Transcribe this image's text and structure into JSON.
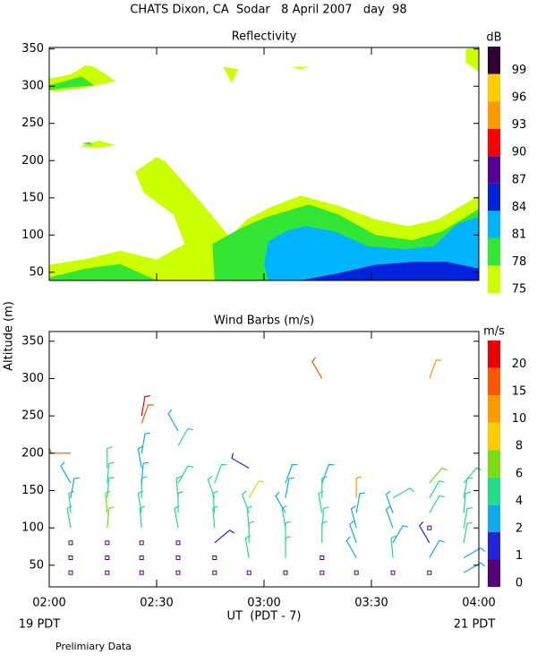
{
  "title": "CHATS Dixon, CA  Sodar   8 April 2007   day  98",
  "y_label": "Altitude (m)",
  "x_label": "UT  (PDT - 7)",
  "x_left_note": "19 PDT",
  "x_right_note": "21 PDT",
  "footnote": "Prelimiary Data",
  "chart_data": [
    {
      "type": "contour",
      "title": "Reflectivity",
      "colorbar_label": "dB",
      "levels": [
        75,
        78,
        81,
        84,
        87,
        90,
        93,
        96,
        99
      ],
      "colors": [
        "#ccff00",
        "#33e633",
        "#00b4ff",
        "#0022dd",
        "#550099",
        "#ff0000",
        "#ff9900",
        "#ffcc00",
        "#330033"
      ],
      "xlim": [
        2,
        4
      ],
      "ylim": [
        39,
        352
      ],
      "xticks": [
        2,
        2.5,
        3,
        3.5,
        4
      ],
      "yticks": [
        50,
        100,
        150,
        200,
        250,
        300,
        350
      ],
      "regions": [
        {
          "level": 75,
          "x": [
            2,
            2.19,
            2.33,
            2.5,
            2.63,
            2.58,
            2.44,
            2.4,
            2.5,
            2.54,
            2.65,
            2.75,
            2.84,
            2.92,
            3.02,
            3.17,
            3.35,
            3.52,
            3.67,
            3.81,
            4,
            4,
            2
          ],
          "y": [
            60,
            69,
            79,
            67,
            88,
            127,
            157,
            185,
            205,
            199,
            163,
            129,
            97,
            121,
            136,
            153,
            139,
            121,
            112,
            121,
            153,
            39,
            39
          ]
        },
        {
          "level": 75,
          "x": [
            2,
            2.1,
            2.17,
            2.21,
            2.31,
            2.17,
            2.02,
            2
          ],
          "y": [
            310,
            316,
            328,
            326,
            307,
            298,
            293,
            295
          ]
        },
        {
          "level": 75,
          "x": [
            2.14,
            2.23,
            2.31,
            2.23
          ],
          "y": [
            219,
            227,
            221,
            217
          ]
        },
        {
          "level": 75,
          "x": [
            2.81,
            2.88,
            2.85
          ],
          "y": [
            326,
            323,
            304
          ]
        },
        {
          "level": 75,
          "x": [
            3.13,
            3.21,
            3.17
          ],
          "y": [
            326,
            326,
            322
          ]
        },
        {
          "level": 75,
          "x": [
            3.94,
            3.98,
            4,
            4,
            3.94
          ],
          "y": [
            350,
            352,
            352,
            319,
            332
          ]
        },
        {
          "level": 78,
          "x": [
            2,
            2,
            2.17,
            2.33,
            2.5
          ],
          "y": [
            39,
            43,
            55,
            61,
            39
          ]
        },
        {
          "level": 78,
          "x": [
            2.77,
            2.76,
            2.89,
            3.0,
            3.15,
            3.21,
            3.35,
            3.52,
            3.69,
            3.83,
            4,
            4
          ],
          "y": [
            39,
            88,
            109,
            123,
            136,
            141,
            127,
            100,
            93,
            105,
            135,
            39
          ]
        },
        {
          "level": 78,
          "x": [
            2,
            2.15,
            2.21,
            2.08,
            2
          ],
          "y": [
            301,
            313,
            301,
            298,
            295
          ]
        },
        {
          "level": 78,
          "x": [
            2.15,
            2.19,
            2.2
          ],
          "y": [
            223,
            225,
            221
          ]
        },
        {
          "level": 81,
          "x": [
            3.02,
            3.0,
            3.02,
            3.1,
            3.19,
            3.33,
            3.48,
            3.65,
            3.79,
            3.9,
            3.98,
            4,
            4
          ],
          "y": [
            39,
            61,
            91,
            105,
            112,
            105,
            85,
            81,
            85,
            115,
            123,
            123,
            39
          ]
        },
        {
          "level": 84,
          "x": [
            3.17,
            3.35,
            3.52,
            3.69,
            3.85,
            4,
            4
          ],
          "y": [
            39,
            49,
            60,
            64,
            64,
            55,
            39
          ]
        }
      ]
    },
    {
      "type": "barbs",
      "title": "Wind Barbs (m/s)",
      "colorbar_label": "m/s",
      "levels": [
        0,
        1,
        2,
        4,
        6,
        8,
        10,
        15,
        20
      ],
      "colors": [
        "#550077",
        "#2222dd",
        "#11aaee",
        "#22dd88",
        "#77dd11",
        "#ffcc00",
        "#ff9900",
        "#ff5500",
        "#ee0000"
      ],
      "xlim": [
        2,
        4
      ],
      "ylim": [
        21,
        363
      ],
      "xticks": [
        {
          "value": 2,
          "label": "02:00"
        },
        {
          "value": 2.5,
          "label": "02:30"
        },
        {
          "value": 3,
          "label": "03:00"
        },
        {
          "value": 3.5,
          "label": "03:30"
        },
        {
          "value": 4,
          "label": "04:00"
        }
      ],
      "yticks": [
        50,
        100,
        150,
        200,
        250,
        300,
        350
      ],
      "barbs": [
        [
          2.1,
          40,
          0,
          0
        ],
        [
          2.1,
          60,
          0,
          0
        ],
        [
          2.1,
          80,
          0,
          0
        ],
        [
          2.1,
          100,
          4.5,
          350
        ],
        [
          2.1,
          120,
          4.5,
          355
        ],
        [
          2.1,
          140,
          3,
          10
        ],
        [
          2.1,
          160,
          3,
          330
        ],
        [
          2.1,
          200,
          16,
          270
        ],
        [
          2.27,
          40,
          0,
          0
        ],
        [
          2.27,
          60,
          0,
          0
        ],
        [
          2.27,
          80,
          0,
          0
        ],
        [
          2.27,
          100,
          6,
          5
        ],
        [
          2.27,
          120,
          6.5,
          355
        ],
        [
          2.27,
          140,
          5,
          5
        ],
        [
          2.27,
          160,
          5,
          5
        ],
        [
          2.27,
          180,
          5,
          0
        ],
        [
          2.43,
          40,
          0,
          0
        ],
        [
          2.43,
          60,
          0,
          0
        ],
        [
          2.43,
          80,
          0,
          0
        ],
        [
          2.43,
          100,
          5,
          355
        ],
        [
          2.43,
          120,
          4,
          350
        ],
        [
          2.43,
          140,
          4,
          0
        ],
        [
          2.43,
          160,
          3,
          5
        ],
        [
          2.43,
          180,
          3,
          350
        ],
        [
          2.43,
          200,
          3,
          10
        ],
        [
          2.43,
          240,
          17,
          20
        ],
        [
          2.43,
          250,
          20,
          10
        ],
        [
          2.6,
          40,
          0,
          0
        ],
        [
          2.6,
          60,
          0,
          0
        ],
        [
          2.6,
          80,
          0,
          0
        ],
        [
          2.6,
          100,
          5,
          350
        ],
        [
          2.6,
          120,
          5,
          0
        ],
        [
          2.6,
          140,
          4.5,
          355
        ],
        [
          2.6,
          160,
          5,
          30
        ],
        [
          2.6,
          210,
          5,
          30
        ],
        [
          2.6,
          230,
          2.5,
          330
        ],
        [
          2.77,
          40,
          0,
          0
        ],
        [
          2.77,
          60,
          0,
          0
        ],
        [
          2.77,
          80,
          1.5,
          50
        ],
        [
          2.77,
          100,
          5,
          355
        ],
        [
          2.77,
          120,
          4.5,
          355
        ],
        [
          2.77,
          140,
          4,
          340
        ],
        [
          2.77,
          160,
          4.5,
          20
        ],
        [
          2.93,
          40,
          0,
          0
        ],
        [
          2.93,
          60,
          5,
          350
        ],
        [
          2.93,
          80,
          5,
          0
        ],
        [
          2.93,
          100,
          5,
          355
        ],
        [
          2.93,
          120,
          4,
          340
        ],
        [
          2.93,
          140,
          8,
          30
        ],
        [
          2.93,
          180,
          1.5,
          300
        ],
        [
          3.1,
          40,
          0,
          0
        ],
        [
          3.1,
          60,
          5,
          0
        ],
        [
          3.1,
          80,
          5,
          0
        ],
        [
          3.1,
          100,
          4,
          350
        ],
        [
          3.1,
          120,
          3,
          330
        ],
        [
          3.1,
          140,
          3,
          10
        ],
        [
          3.1,
          160,
          3,
          20
        ],
        [
          3.27,
          40,
          0,
          0
        ],
        [
          3.27,
          60,
          0,
          0
        ],
        [
          3.27,
          80,
          5,
          0
        ],
        [
          3.27,
          100,
          5,
          5
        ],
        [
          3.27,
          120,
          4,
          350
        ],
        [
          3.27,
          140,
          4,
          0
        ],
        [
          3.27,
          160,
          3,
          20
        ],
        [
          3.27,
          300,
          15,
          330
        ],
        [
          3.43,
          40,
          0,
          0
        ],
        [
          3.43,
          60,
          2.5,
          330
        ],
        [
          3.43,
          80,
          3,
          340
        ],
        [
          3.43,
          100,
          3,
          345
        ],
        [
          3.43,
          120,
          3,
          10
        ],
        [
          3.43,
          140,
          10,
          0
        ],
        [
          3.6,
          40,
          0,
          0
        ],
        [
          3.6,
          60,
          5,
          355
        ],
        [
          3.6,
          80,
          3,
          30
        ],
        [
          3.6,
          100,
          3,
          340
        ],
        [
          3.6,
          120,
          3,
          340
        ],
        [
          3.6,
          140,
          5,
          60
        ],
        [
          3.77,
          40,
          0,
          0
        ],
        [
          3.77,
          60,
          3,
          30
        ],
        [
          3.77,
          80,
          1.5,
          330
        ],
        [
          3.77,
          100,
          0,
          0
        ],
        [
          3.77,
          120,
          5,
          30
        ],
        [
          3.77,
          140,
          5,
          30
        ],
        [
          3.77,
          160,
          6,
          40
        ],
        [
          3.77,
          300,
          13,
          20
        ],
        [
          3.93,
          40,
          3,
          60
        ],
        [
          3.93,
          60,
          3,
          60
        ],
        [
          3.93,
          80,
          4,
          10
        ],
        [
          3.93,
          100,
          5,
          10
        ],
        [
          3.93,
          120,
          5,
          5
        ],
        [
          3.93,
          140,
          5,
          10
        ],
        [
          3.93,
          160,
          4,
          40
        ]
      ]
    }
  ]
}
